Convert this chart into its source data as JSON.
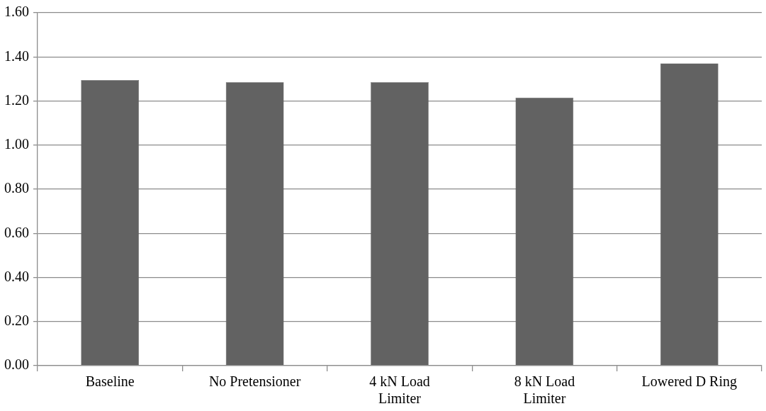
{
  "chart_data": {
    "type": "bar",
    "categories": [
      "Baseline",
      "No Pretensioner",
      "4 kN Load Limiter",
      "8 kN Load Limiter",
      "Lowered D Ring"
    ],
    "values": [
      1.295,
      1.285,
      1.285,
      1.215,
      1.37
    ],
    "color": "#626262",
    "ylim": [
      0,
      1.6
    ],
    "yticks": [
      {
        "value": 0,
        "label": "0.00"
      },
      {
        "value": 0.2,
        "label": "0.20"
      },
      {
        "value": 0.4,
        "label": "0.40"
      },
      {
        "value": 0.6,
        "label": "0.60"
      },
      {
        "value": 0.8,
        "label": "0.80"
      },
      {
        "value": 1,
        "label": "1.00"
      },
      {
        "value": 1.2,
        "label": "1.20"
      },
      {
        "value": 1.4,
        "label": "1.40"
      },
      {
        "value": 1.6,
        "label": "1.60"
      }
    ],
    "grid": "y",
    "legend": false
  }
}
